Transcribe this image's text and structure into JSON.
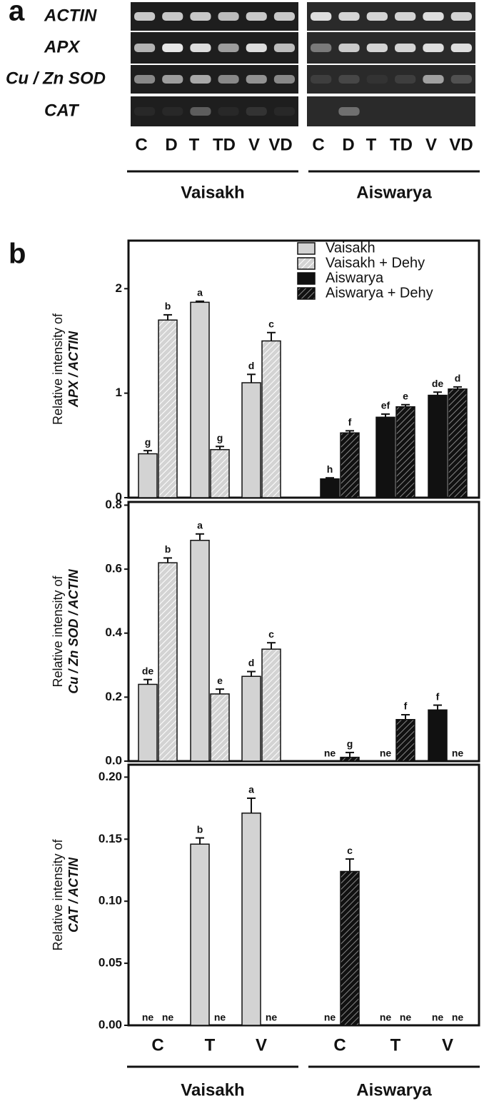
{
  "panel_a": {
    "label": "a",
    "genes": [
      "ACTIN",
      "APX",
      "Cu / Zn SOD",
      "CAT"
    ],
    "groups": [
      {
        "name": "Vaisakh",
        "lanes": [
          "C",
          "D",
          "T",
          "TD",
          "V",
          "VD"
        ]
      },
      {
        "name": "Aiswarya",
        "lanes": [
          "C",
          "D",
          "T",
          "TD",
          "V",
          "VD"
        ]
      }
    ]
  },
  "panel_b": {
    "label": "b"
  },
  "chart_data": [
    {
      "type": "bar",
      "ylabel": "Relative intensity of",
      "ylabel_gene": "APX / ACTIN",
      "ylim": [
        0,
        2.46
      ],
      "yticks": [
        0,
        1,
        2
      ],
      "legend": "upper right",
      "series": [
        {
          "name": "Vaisakh",
          "color": "#d3d3d3",
          "hatch": false,
          "values": [
            0.42,
            1.87,
            1.1,
            null,
            null,
            null
          ],
          "errors": [
            0.03,
            0.01,
            0.08,
            null,
            null,
            null
          ],
          "letters": [
            "g",
            "a",
            "d",
            null,
            null,
            null
          ]
        },
        {
          "name": "Vaisakh + Dehy",
          "color": "#d3d3d3",
          "hatch": true,
          "values": [
            1.7,
            0.46,
            1.5,
            null,
            null,
            null
          ],
          "errors": [
            0.05,
            0.03,
            0.08,
            null,
            null,
            null
          ],
          "letters": [
            "b",
            "g",
            "c",
            null,
            null,
            null
          ]
        },
        {
          "name": "Aiswarya",
          "color": "#111111",
          "hatch": false,
          "values": [
            null,
            null,
            null,
            0.18,
            0.77,
            0.98
          ],
          "errors": [
            null,
            null,
            null,
            0.01,
            0.03,
            0.03
          ],
          "letters": [
            null,
            null,
            null,
            "h",
            "ef",
            "de"
          ]
        },
        {
          "name": "Aiswarya + Dehy",
          "color": "#111111",
          "hatch": true,
          "values": [
            null,
            null,
            null,
            0.62,
            0.87,
            1.04
          ],
          "errors": [
            null,
            null,
            null,
            0.02,
            0.02,
            0.02
          ],
          "letters": [
            null,
            null,
            null,
            "f",
            "e",
            "d"
          ]
        }
      ]
    },
    {
      "type": "bar",
      "ylabel": "Relative intensity of",
      "ylabel_gene": "Cu / Zn SOD / ACTIN",
      "ylim": [
        0,
        0.81
      ],
      "yticks": [
        {
          "value": 0,
          "label": "0.0"
        },
        0.2,
        0.4,
        0.6,
        0.8
      ],
      "series": [
        {
          "values": [
            0.24,
            0.69,
            0.265,
            null,
            null,
            null
          ],
          "errors": [
            0.015,
            0.02,
            0.015,
            null,
            null,
            null
          ],
          "letters": [
            "de",
            "a",
            "d",
            null,
            null,
            null
          ]
        },
        {
          "values": [
            0.62,
            0.21,
            0.35,
            null,
            null,
            null
          ],
          "errors": [
            0.015,
            0.015,
            0.02,
            null,
            null,
            null
          ],
          "letters": [
            "b",
            "e",
            "c",
            null,
            null,
            null
          ]
        },
        {
          "values": [
            null,
            null,
            null,
            0,
            0,
            0.16
          ],
          "errors": [
            null,
            null,
            null,
            null,
            null,
            0.015
          ],
          "letters": [
            null,
            null,
            null,
            "ne",
            "ne",
            "f"
          ]
        },
        {
          "values": [
            null,
            null,
            null,
            0.012,
            0.13,
            0
          ],
          "errors": [
            null,
            null,
            null,
            0.015,
            0.015,
            null
          ],
          "letters": [
            null,
            null,
            null,
            "g",
            "f",
            "ne"
          ]
        }
      ]
    },
    {
      "type": "bar",
      "ylabel": "Relative intensity of",
      "ylabel_gene": "CAT / ACTIN",
      "ylim": [
        0,
        0.21
      ],
      "yticks": [
        {
          "value": 0,
          "label": "0.00"
        },
        0.05,
        {
          "value": 0.1,
          "label": "0.10"
        },
        0.15,
        {
          "value": 0.2,
          "label": "0.20"
        }
      ],
      "categories": [
        "C",
        "T",
        "V",
        "C",
        "T",
        "V"
      ],
      "groups": [
        "Vaisakh",
        "Aiswarya"
      ],
      "series": [
        {
          "values": [
            0,
            0.146,
            0.171,
            null,
            null,
            null
          ],
          "errors": [
            null,
            0.005,
            0.012,
            null,
            null,
            null
          ],
          "letters": [
            "ne",
            "b",
            "a",
            null,
            null,
            null
          ]
        },
        {
          "values": [
            0,
            0,
            0,
            null,
            null,
            null
          ],
          "errors": [
            null,
            null,
            null,
            null,
            null,
            null
          ],
          "letters": [
            "ne",
            "ne",
            "ne",
            null,
            null,
            null
          ]
        },
        {
          "values": [
            null,
            null,
            null,
            0,
            0,
            0
          ],
          "errors": [
            null,
            null,
            null,
            null,
            null,
            null
          ],
          "letters": [
            null,
            null,
            null,
            "ne",
            "ne",
            "ne"
          ]
        },
        {
          "values": [
            null,
            null,
            null,
            0.124,
            0,
            0
          ],
          "errors": [
            null,
            null,
            null,
            0.01,
            null,
            null
          ],
          "letters": [
            null,
            null,
            null,
            "c",
            "ne",
            "ne"
          ]
        }
      ]
    }
  ]
}
